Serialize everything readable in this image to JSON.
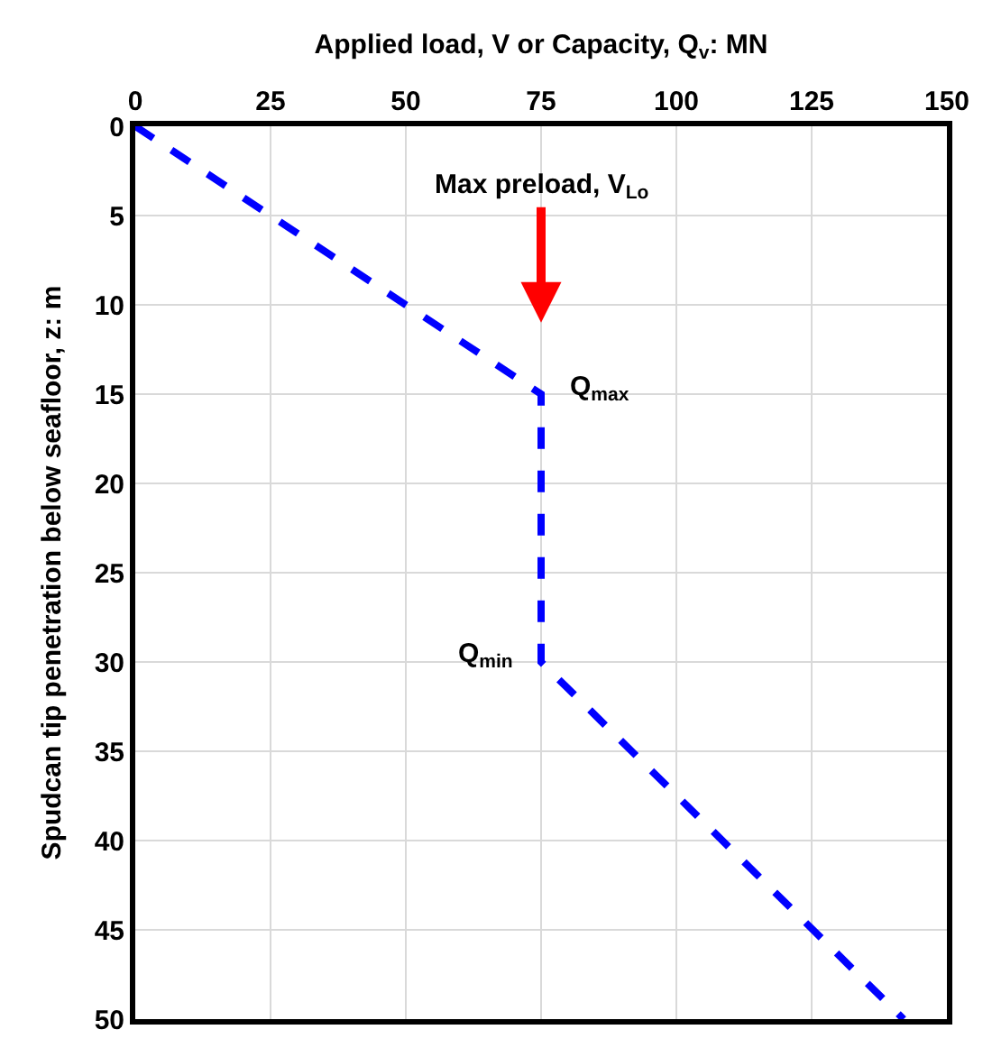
{
  "chart_data": {
    "type": "line",
    "xlabel": "Applied load, V or Capacity, Q$_{v}$: MN",
    "ylabel": "Spudcan tip penetration below seafloor, z: m",
    "x": [
      0,
      75,
      75,
      142
    ],
    "series": [
      {
        "color": "#0000ff",
        "values": [
          0,
          15,
          30,
          50
        ]
      }
    ],
    "xlim": [
      0,
      150
    ],
    "xticks": [
      0,
      25,
      50,
      75,
      100,
      125,
      150
    ],
    "ylim": [
      50,
      0
    ],
    "yticks": [
      0,
      5,
      10,
      15,
      20,
      25,
      30,
      35,
      40,
      45,
      50
    ],
    "grid": true,
    "marker": "none",
    "line_style": "dashed",
    "annotations": [
      "Max preload, V$_{Lo}$",
      {
        "text": "Q$_{max}$",
        "x": 75,
        "y": 15
      },
      {
        "text": "Q$_{min}$",
        "x": 75,
        "y": 30
      }
    ]
  }
}
